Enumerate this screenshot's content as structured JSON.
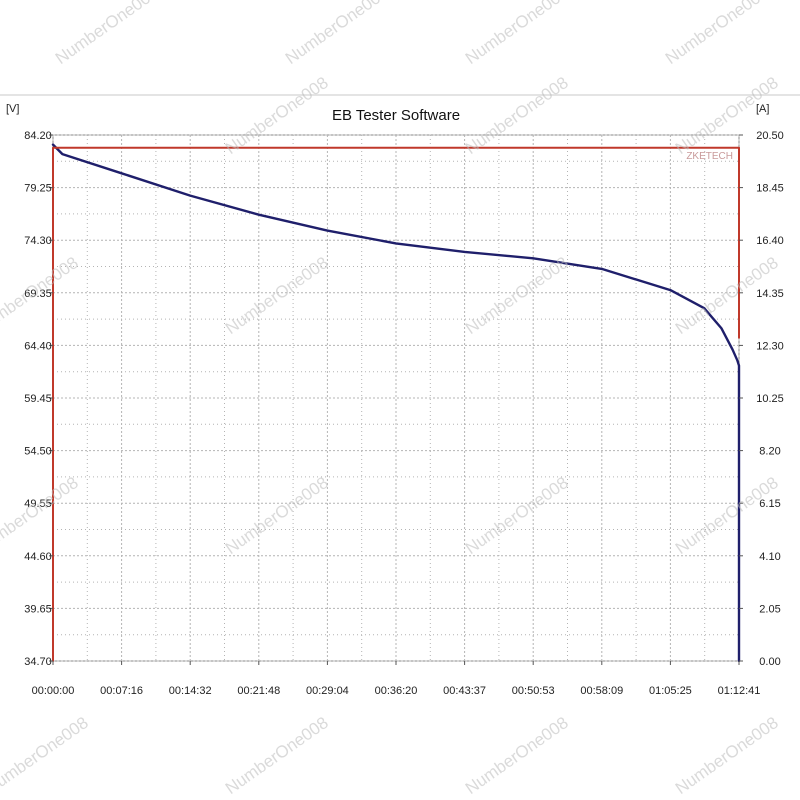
{
  "chart_data": {
    "type": "line",
    "title": "EB Tester Software",
    "y_left_unit": "[V]",
    "y_right_unit": "[A]",
    "brand": "ZKETECH",
    "x_tick_labels": [
      "00:00:00",
      "00:07:16",
      "00:14:32",
      "00:21:48",
      "00:29:04",
      "00:36:20",
      "00:43:37",
      "00:50:53",
      "00:58:09",
      "01:05:25",
      "01:12:41"
    ],
    "y_left_ticks": [
      34.7,
      39.65,
      44.6,
      49.55,
      54.5,
      59.45,
      64.4,
      69.35,
      74.3,
      79.25,
      84.2
    ],
    "y_left_tick_labels": [
      "34.70",
      "39.65",
      "44.60",
      "49.55",
      "54.50",
      "59.45",
      "64.40",
      "69.35",
      "74.30",
      "79.25",
      "84.20"
    ],
    "y_right_ticks": [
      0.0,
      2.05,
      4.1,
      6.15,
      8.2,
      10.25,
      12.3,
      14.35,
      16.4,
      18.45,
      20.5
    ],
    "y_right_tick_labels": [
      "0.00",
      "2.05",
      "4.10",
      "6.15",
      "8.20",
      "10.25",
      "12.30",
      "14.35",
      "16.40",
      "18.45",
      "20.50"
    ],
    "x_range_seconds": [
      0,
      4361
    ],
    "y_left_range": [
      34.7,
      84.2
    ],
    "y_right_range": [
      0.0,
      20.5
    ],
    "grid": true,
    "series": [
      {
        "axis": "left",
        "color": "#1f1f6b",
        "x_seconds": [
          0,
          60,
          436,
          872,
          1308,
          1744,
          2180,
          2617,
          3053,
          3489,
          3925,
          4140,
          4250,
          4320,
          4350,
          4361,
          4361
        ],
        "values": [
          83.3,
          82.4,
          80.6,
          78.5,
          76.7,
          75.2,
          74.0,
          73.2,
          72.6,
          71.6,
          69.6,
          67.9,
          66.0,
          64.0,
          63.0,
          62.5,
          34.7
        ]
      },
      {
        "axis": "right",
        "color": "#c0392b",
        "x_seconds": [
          0,
          0,
          4361,
          4361
        ],
        "values": [
          0.0,
          20.0,
          20.0,
          12.6
        ]
      }
    ]
  },
  "watermark": "NumberOne008"
}
